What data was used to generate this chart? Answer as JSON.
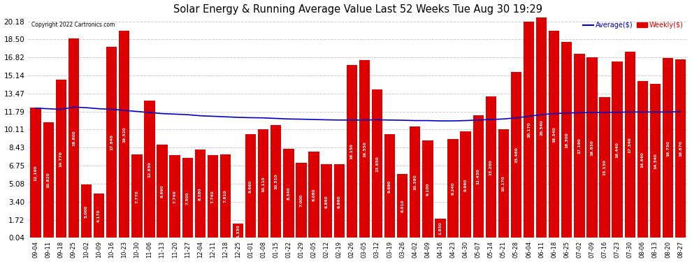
{
  "title": "Solar Energy & Running Average Value Last 52 Weeks Tue Aug 30 19:29",
  "copyright": "Copyright 2022 Cartronics.com",
  "legend_avg": "Average($)",
  "legend_weekly": "Weekly($)",
  "bar_color": "#dd0000",
  "avg_line_color": "#0000cc",
  "background_color": "#ffffff",
  "grid_color": "#cccccc",
  "yticks": [
    0.04,
    1.72,
    3.4,
    5.08,
    6.75,
    8.43,
    10.11,
    11.79,
    13.47,
    15.14,
    16.82,
    18.5,
    20.18
  ],
  "categories": [
    "09-04",
    "09-11",
    "09-18",
    "09-25",
    "10-02",
    "10-09",
    "10-16",
    "10-23",
    "10-30",
    "11-06",
    "11-13",
    "11-20",
    "11-27",
    "12-04",
    "12-11",
    "12-18",
    "12-25",
    "01-01",
    "01-08",
    "01-15",
    "01-22",
    "01-29",
    "02-05",
    "02-12",
    "02-19",
    "02-26",
    "03-05",
    "03-12",
    "03-19",
    "03-26",
    "04-02",
    "04-09",
    "04-16",
    "04-23",
    "04-30",
    "05-07",
    "05-14",
    "05-21",
    "05-28",
    "06-04",
    "06-11",
    "06-18",
    "06-25",
    "07-02",
    "07-09",
    "07-16",
    "07-23",
    "07-30",
    "08-06",
    "08-13",
    "08-20",
    "08-27"
  ],
  "weekly_values": [
    12.19,
    10.82,
    14.77,
    18.6,
    5.0,
    4.17,
    17.84,
    19.32,
    7.77,
    12.83,
    8.69,
    7.74,
    7.5,
    8.28,
    7.74,
    7.81,
    1.33,
    9.66,
    10.11,
    10.51,
    8.34,
    7.0,
    8.08,
    6.86,
    6.86,
    16.15,
    16.55,
    13.85,
    9.69,
    6.01,
    10.38,
    9.1,
    1.85,
    9.24,
    9.96,
    11.43,
    13.2,
    10.17,
    15.46,
    20.17,
    20.54,
    19.34,
    18.3,
    17.16,
    16.83,
    13.13,
    16.44,
    17.34,
    14.64,
    14.34,
    16.75,
    16.67
  ],
  "avg_values": [
    12.1,
    12.05,
    12.0,
    12.2,
    12.15,
    12.05,
    12.0,
    11.9,
    11.8,
    11.7,
    11.6,
    11.55,
    11.5,
    11.4,
    11.35,
    11.3,
    11.25,
    11.22,
    11.2,
    11.15,
    11.1,
    11.08,
    11.05,
    11.02,
    11.0,
    11.0,
    11.0,
    11.02,
    11.0,
    10.98,
    10.95,
    10.95,
    10.92,
    10.92,
    10.95,
    11.0,
    11.05,
    11.1,
    11.2,
    11.35,
    11.5,
    11.6,
    11.65,
    11.68,
    11.7,
    11.72,
    11.73,
    11.75,
    11.75,
    11.75,
    11.75,
    11.78
  ]
}
